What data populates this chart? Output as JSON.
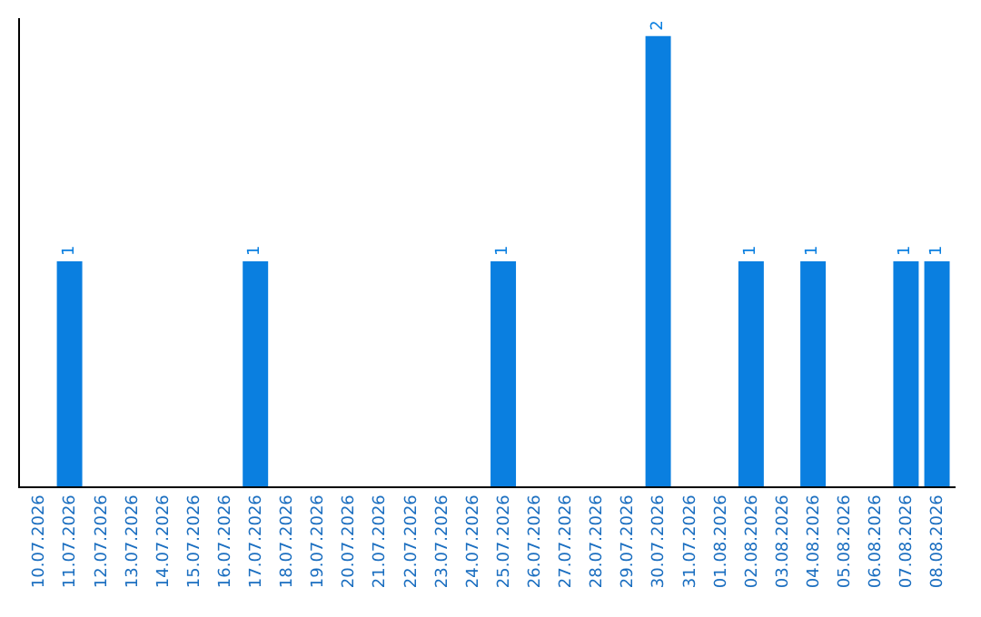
{
  "chart_data": {
    "type": "bar",
    "categories": [
      "10.07.2026",
      "11.07.2026",
      "12.07.2026",
      "13.07.2026",
      "14.07.2026",
      "15.07.2026",
      "16.07.2026",
      "17.07.2026",
      "18.07.2026",
      "19.07.2026",
      "20.07.2026",
      "21.07.2026",
      "22.07.2026",
      "23.07.2026",
      "24.07.2026",
      "25.07.2026",
      "26.07.2026",
      "27.07.2026",
      "28.07.2026",
      "29.07.2026",
      "30.07.2026",
      "31.07.2026",
      "01.08.2026",
      "02.08.2026",
      "03.08.2026",
      "04.08.2026",
      "05.08.2026",
      "06.08.2026",
      "07.08.2026",
      "08.08.2026"
    ],
    "values": [
      0,
      1,
      0,
      0,
      0,
      0,
      0,
      1,
      0,
      0,
      0,
      0,
      0,
      0,
      0,
      1,
      0,
      0,
      0,
      0,
      2,
      0,
      0,
      1,
      0,
      1,
      0,
      0,
      1,
      1
    ],
    "value_labels": [
      null,
      "1",
      null,
      null,
      null,
      null,
      null,
      "1",
      null,
      null,
      null,
      null,
      null,
      null,
      null,
      "1",
      null,
      null,
      null,
      null,
      "2",
      null,
      null,
      "1",
      null,
      "1",
      null,
      null,
      "1",
      "1"
    ],
    "color": "#0a7fe0",
    "tick_labels": "x"
  }
}
